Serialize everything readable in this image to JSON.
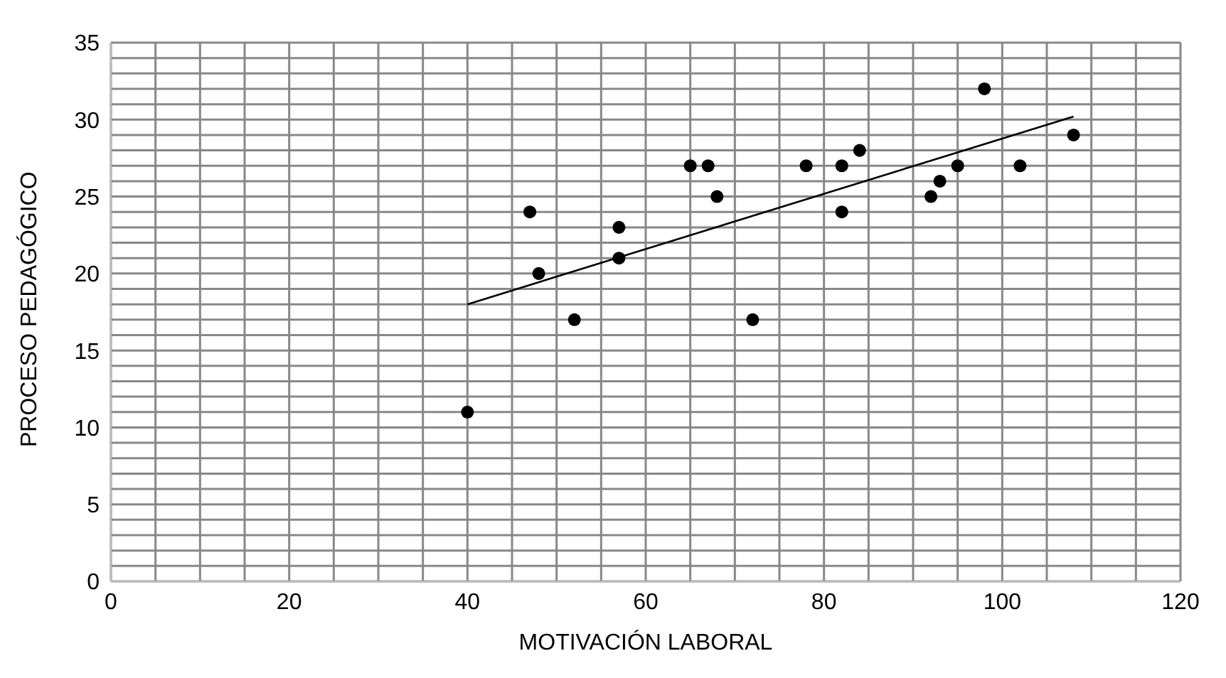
{
  "chart_data": {
    "type": "scatter",
    "xlabel": "MOTIVACIÓN LABORAL",
    "ylabel": "PROCESO PEDAGÓGICO",
    "x": [
      40,
      47,
      48,
      52,
      57,
      57,
      65,
      67,
      68,
      72,
      78,
      82,
      82,
      84,
      92,
      93,
      95,
      98,
      102,
      108
    ],
    "series": [
      {
        "color": "#000000",
        "marker": "circle",
        "values": [
          11,
          24,
          20,
          17,
          23,
          21,
          27,
          27,
          25,
          17,
          27,
          27,
          24,
          28,
          25,
          26,
          27,
          32,
          27,
          29
        ]
      },
      {
        "type": "line",
        "color": "#000000",
        "marker": "none",
        "x": [
          40,
          108
        ],
        "values": [
          18,
          30.2
        ]
      }
    ],
    "xlim": [
      0,
      120
    ],
    "xticks": [
      0,
      {
        "value": 5,
        "label": null
      },
      {
        "value": 10,
        "label": null
      },
      {
        "value": 15,
        "label": null
      },
      20,
      {
        "value": 25,
        "label": null
      },
      {
        "value": 30,
        "label": null
      },
      {
        "value": 35,
        "label": null
      },
      40,
      {
        "value": 45,
        "label": null
      },
      {
        "value": 50,
        "label": null
      },
      {
        "value": 55,
        "label": null
      },
      60,
      {
        "value": 65,
        "label": null
      },
      {
        "value": 70,
        "label": null
      },
      {
        "value": 75,
        "label": null
      },
      80,
      {
        "value": 85,
        "label": null
      },
      {
        "value": 90,
        "label": null
      },
      {
        "value": 95,
        "label": null
      },
      100,
      {
        "value": 105,
        "label": null
      },
      {
        "value": 110,
        "label": null
      },
      {
        "value": 115,
        "label": null
      },
      120
    ],
    "ylim": [
      0,
      35
    ],
    "yticks": [
      0,
      {
        "value": 1,
        "label": null
      },
      {
        "value": 2,
        "label": null
      },
      {
        "value": 3,
        "label": null
      },
      {
        "value": 4,
        "label": null
      },
      5,
      {
        "value": 6,
        "label": null
      },
      {
        "value": 7,
        "label": null
      },
      {
        "value": 8,
        "label": null
      },
      {
        "value": 9,
        "label": null
      },
      10,
      {
        "value": 11,
        "label": null
      },
      {
        "value": 12,
        "label": null
      },
      {
        "value": 13,
        "label": null
      },
      {
        "value": 14,
        "label": null
      },
      15,
      {
        "value": 16,
        "label": null
      },
      {
        "value": 17,
        "label": null
      },
      {
        "value": 18,
        "label": null
      },
      {
        "value": 19,
        "label": null
      },
      20,
      {
        "value": 21,
        "label": null
      },
      {
        "value": 22,
        "label": null
      },
      {
        "value": 23,
        "label": null
      },
      {
        "value": 24,
        "label": null
      },
      25,
      {
        "value": 26,
        "label": null
      },
      {
        "value": 27,
        "label": null
      },
      {
        "value": 28,
        "label": null
      },
      {
        "value": 29,
        "label": null
      },
      30,
      {
        "value": 31,
        "label": null
      },
      {
        "value": 32,
        "label": null
      },
      {
        "value": 33,
        "label": null
      },
      {
        "value": 34,
        "label": null
      },
      35
    ],
    "grid": true
  }
}
